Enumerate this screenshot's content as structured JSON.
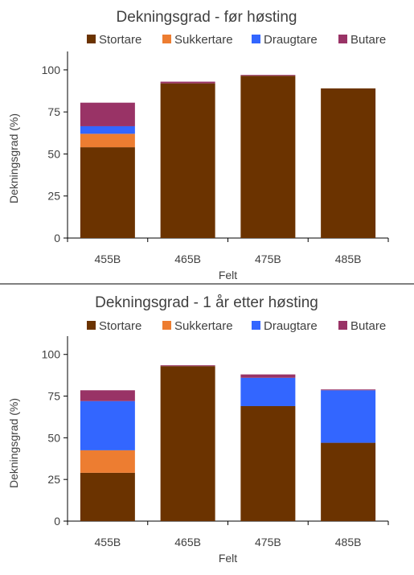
{
  "chart_data": [
    {
      "type": "bar",
      "stacked": true,
      "title": "Dekningsgrad  - før høsting",
      "xlabel": "Felt",
      "ylabel": "Dekningsgrad (%)",
      "ylim": [
        0,
        110
      ],
      "yticks": [
        0,
        25,
        50,
        75,
        100
      ],
      "legend_position": "top",
      "grid": false,
      "categories": [
        "455B",
        "465B",
        "475B",
        "485B"
      ],
      "series": [
        {
          "name": "Stortare",
          "color": "#6B3300",
          "values": [
            54,
            92,
            96.5,
            89
          ]
        },
        {
          "name": "Sukkertare",
          "color": "#ED7D31",
          "values": [
            8,
            0,
            0,
            0
          ]
        },
        {
          "name": "Draugtare",
          "color": "#3366FF",
          "values": [
            4.5,
            0,
            0,
            0
          ]
        },
        {
          "name": "Butare",
          "color": "#993366",
          "values": [
            14,
            1,
            0.5,
            0
          ]
        }
      ]
    },
    {
      "type": "bar",
      "stacked": true,
      "title": "Dekningsgrad  - 1 år etter høsting",
      "xlabel": "Felt",
      "ylabel": "Dekningsgrad (%)",
      "ylim": [
        0,
        110
      ],
      "yticks": [
        0,
        25,
        50,
        75,
        100
      ],
      "legend_position": "top",
      "grid": false,
      "categories": [
        "455B",
        "465B",
        "475B",
        "485B"
      ],
      "series": [
        {
          "name": "Stortare",
          "color": "#6B3300",
          "values": [
            29,
            93,
            69,
            47
          ]
        },
        {
          "name": "Sukkertare",
          "color": "#ED7D31",
          "values": [
            13.5,
            0,
            0,
            0
          ]
        },
        {
          "name": "Draugtare",
          "color": "#3366FF",
          "values": [
            29.5,
            0,
            17,
            31.5
          ]
        },
        {
          "name": "Butare",
          "color": "#993366",
          "values": [
            6.5,
            0.5,
            2,
            0.5
          ]
        }
      ]
    }
  ]
}
